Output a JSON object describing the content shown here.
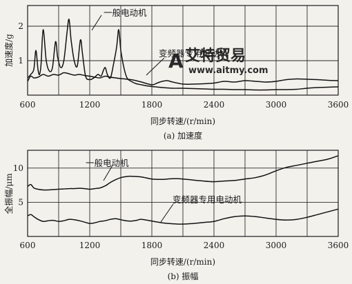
{
  "watermark": {
    "logo_letter": "A",
    "name": "艾特贸易",
    "url": "www.aitmy.com",
    "color": "#d6463a",
    "url_color": "#7a8fb0"
  },
  "chart_data": [
    {
      "type": "line",
      "caption": "(a) 加速度",
      "xlabel": "同步转速/(r/min)",
      "ylabel": "加速度/g",
      "xlim": [
        600,
        3600
      ],
      "ylim": [
        0,
        2.6
      ],
      "xticks": [
        "600",
        "1200",
        "1800",
        "2400",
        "3000",
        "3600"
      ],
      "yticks": [
        "1",
        "2"
      ],
      "grid": true,
      "series": [
        {
          "name": "一般电动机",
          "x": [
            600,
            630,
            660,
            680,
            700,
            715,
            730,
            750,
            780,
            810,
            840,
            870,
            890,
            920,
            950,
            980,
            1000,
            1020,
            1050,
            1080,
            1110,
            1130,
            1160,
            1200,
            1240,
            1280,
            1310,
            1330,
            1350,
            1370,
            1400,
            1430,
            1460,
            1480,
            1500,
            1530,
            1560,
            1600,
            1650,
            1700,
            1750,
            1800,
            1900,
            2000,
            2100,
            2200,
            2300,
            2400,
            2500,
            2600,
            2700,
            2800,
            2900,
            3000,
            3100,
            3200,
            3300,
            3400,
            3500,
            3600
          ],
          "y": [
            0.5,
            0.6,
            0.75,
            1.3,
            0.75,
            0.6,
            0.9,
            1.9,
            1.0,
            0.7,
            0.8,
            1.55,
            1.1,
            0.8,
            1.0,
            1.8,
            2.2,
            1.6,
            1.0,
            0.85,
            1.6,
            1.2,
            0.55,
            0.45,
            0.5,
            0.6,
            0.55,
            0.7,
            0.8,
            0.6,
            0.5,
            0.9,
            1.4,
            1.9,
            1.3,
            0.8,
            0.5,
            0.4,
            0.33,
            0.3,
            0.27,
            0.25,
            0.22,
            0.2,
            0.2,
            0.19,
            0.18,
            0.17,
            0.17,
            0.16,
            0.16,
            0.15,
            0.15,
            0.16,
            0.16,
            0.17,
            0.2,
            0.22,
            0.23,
            0.24
          ]
        },
        {
          "name": "变频器专用电动机",
          "x": [
            600,
            630,
            660,
            700,
            750,
            800,
            850,
            900,
            950,
            1000,
            1050,
            1100,
            1150,
            1200,
            1250,
            1300,
            1350,
            1400,
            1500,
            1600,
            1700,
            1800,
            1850,
            1900,
            1950,
            2000,
            2100,
            2200,
            2300,
            2400,
            2500,
            2600,
            2700,
            2800,
            2900,
            3000,
            3100,
            3200,
            3300,
            3400,
            3500,
            3600
          ],
          "y": [
            0.4,
            0.55,
            0.5,
            0.52,
            0.6,
            0.55,
            0.6,
            0.58,
            0.65,
            0.62,
            0.58,
            0.6,
            0.57,
            0.55,
            0.52,
            0.5,
            0.55,
            0.52,
            0.48,
            0.45,
            0.38,
            0.3,
            0.35,
            0.4,
            0.42,
            0.38,
            0.32,
            0.32,
            0.33,
            0.35,
            0.4,
            0.38,
            0.42,
            0.4,
            0.38,
            0.4,
            0.45,
            0.47,
            0.46,
            0.45,
            0.43,
            0.42
          ]
        }
      ]
    },
    {
      "type": "line",
      "caption": "(b) 振幅",
      "xlabel": "同步转速/(r/min)",
      "ylabel": "全振幅/μm",
      "xlim": [
        600,
        3600
      ],
      "ylim": [
        0,
        12.6
      ],
      "xticks": [
        "600",
        "1200",
        "1800",
        "2400",
        "3000",
        "3600"
      ],
      "yticks": [
        "5",
        "10"
      ],
      "grid": true,
      "series": [
        {
          "name": "一般电动机",
          "x": [
            600,
            630,
            660,
            700,
            750,
            800,
            850,
            900,
            950,
            1000,
            1050,
            1100,
            1150,
            1200,
            1250,
            1300,
            1350,
            1400,
            1450,
            1500,
            1550,
            1600,
            1700,
            1800,
            1900,
            2000,
            2100,
            2200,
            2300,
            2400,
            2500,
            2600,
            2700,
            2800,
            2900,
            3000,
            3100,
            3200,
            3300,
            3400,
            3500,
            3600
          ],
          "y": [
            7.3,
            7.6,
            7.1,
            6.9,
            6.8,
            6.8,
            6.85,
            6.9,
            6.95,
            7.0,
            7.0,
            7.05,
            7.0,
            6.9,
            7.0,
            7.1,
            7.4,
            7.9,
            8.3,
            8.6,
            8.75,
            8.8,
            8.7,
            8.4,
            8.35,
            8.45,
            8.4,
            8.25,
            8.1,
            8.0,
            8.1,
            8.2,
            8.4,
            8.6,
            9.0,
            9.6,
            10.1,
            10.4,
            10.7,
            11.0,
            11.3,
            11.8
          ]
        },
        {
          "name": "变频器专用电动机",
          "x": [
            600,
            630,
            660,
            700,
            750,
            800,
            850,
            900,
            950,
            1000,
            1050,
            1100,
            1150,
            1200,
            1250,
            1300,
            1350,
            1400,
            1450,
            1500,
            1550,
            1600,
            1650,
            1700,
            1800,
            1900,
            2000,
            2100,
            2200,
            2300,
            2400,
            2500,
            2600,
            2700,
            2800,
            2900,
            3000,
            3100,
            3200,
            3300,
            3400,
            3500,
            3600
          ],
          "y": [
            3.0,
            3.2,
            2.9,
            2.5,
            2.2,
            2.3,
            2.35,
            2.2,
            2.3,
            2.5,
            2.45,
            2.3,
            2.1,
            1.9,
            2.0,
            2.2,
            2.3,
            2.5,
            2.6,
            2.45,
            2.3,
            2.25,
            2.35,
            2.5,
            2.25,
            2.0,
            1.85,
            1.8,
            1.9,
            2.05,
            2.2,
            2.6,
            2.9,
            3.0,
            2.9,
            2.7,
            2.5,
            2.4,
            2.5,
            2.8,
            3.2,
            3.6,
            4.0
          ]
        }
      ]
    }
  ]
}
